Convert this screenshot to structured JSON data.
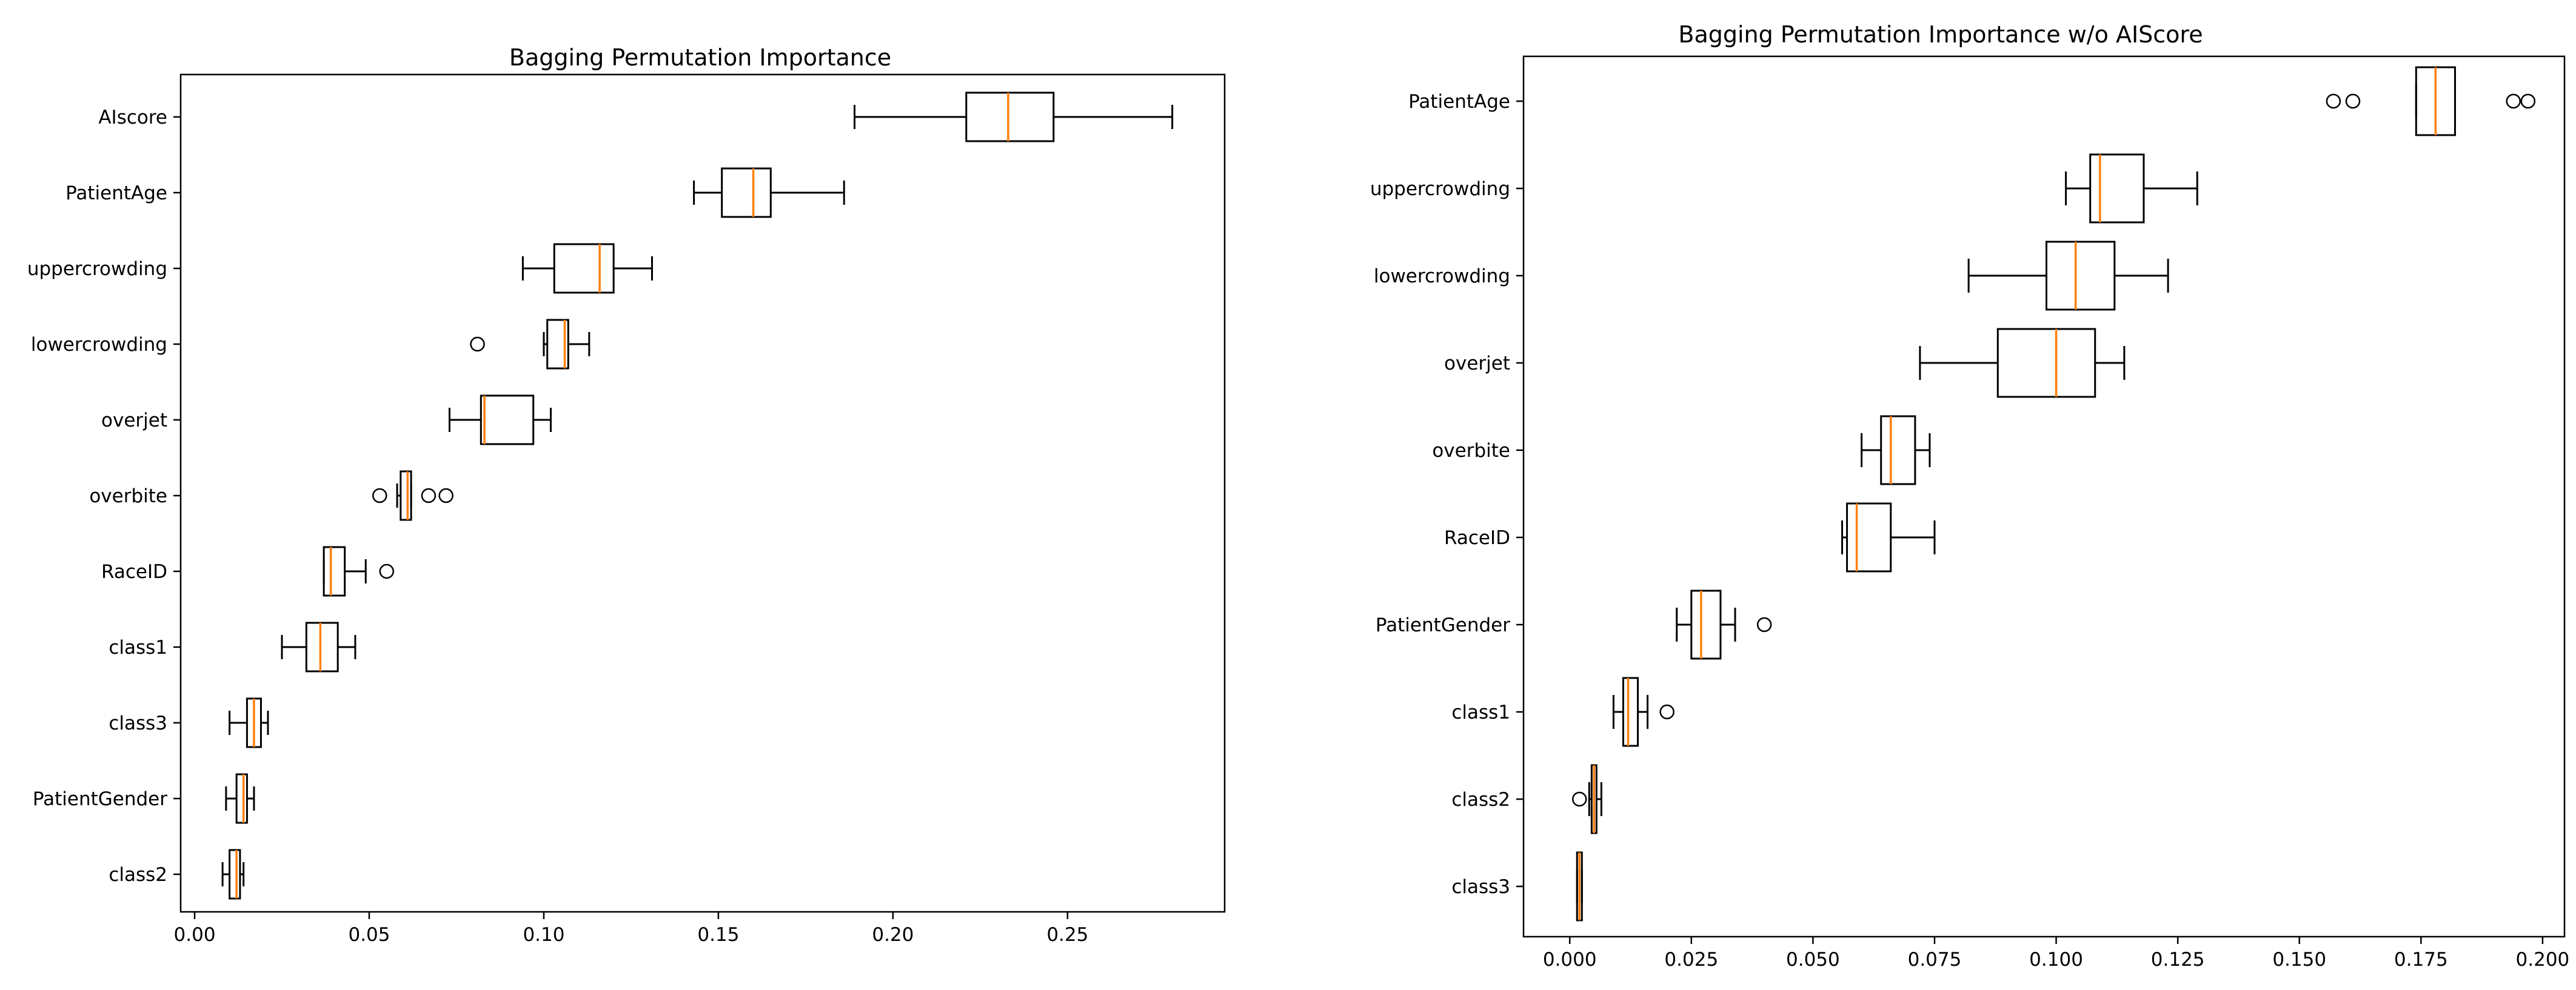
{
  "chart_data": [
    {
      "type": "box",
      "title": "Bagging Permutation Importance",
      "xlabel": "",
      "ylabel": "",
      "xlim": [
        -0.004,
        0.295
      ],
      "xticks": [
        0.0,
        0.05,
        0.1,
        0.15,
        0.2,
        0.25
      ],
      "xtick_labels": [
        "0.00",
        "0.05",
        "0.10",
        "0.15",
        "0.20",
        "0.25"
      ],
      "median_color": "#ff7f0e",
      "series": [
        {
          "name": "AIscore",
          "whislo": 0.189,
          "q1": 0.221,
          "med": 0.233,
          "q3": 0.246,
          "whishi": 0.28,
          "fliers": []
        },
        {
          "name": "PatientAge",
          "whislo": 0.143,
          "q1": 0.151,
          "med": 0.16,
          "q3": 0.165,
          "whishi": 0.186,
          "fliers": []
        },
        {
          "name": "uppercrowding",
          "whislo": 0.094,
          "q1": 0.103,
          "med": 0.116,
          "q3": 0.12,
          "whishi": 0.131,
          "fliers": []
        },
        {
          "name": "lowercrowding",
          "whislo": 0.1,
          "q1": 0.101,
          "med": 0.106,
          "q3": 0.107,
          "whishi": 0.113,
          "fliers": [
            0.081
          ]
        },
        {
          "name": "overjet",
          "whislo": 0.073,
          "q1": 0.082,
          "med": 0.083,
          "q3": 0.097,
          "whishi": 0.102,
          "fliers": []
        },
        {
          "name": "overbite",
          "whislo": 0.058,
          "q1": 0.059,
          "med": 0.061,
          "q3": 0.062,
          "whishi": 0.062,
          "fliers": [
            0.053,
            0.067,
            0.072
          ]
        },
        {
          "name": "RaceID",
          "whislo": 0.037,
          "q1": 0.037,
          "med": 0.039,
          "q3": 0.043,
          "whishi": 0.049,
          "fliers": [
            0.055
          ]
        },
        {
          "name": "class1",
          "whislo": 0.025,
          "q1": 0.032,
          "med": 0.036,
          "q3": 0.041,
          "whishi": 0.046,
          "fliers": []
        },
        {
          "name": "class3",
          "whislo": 0.01,
          "q1": 0.015,
          "med": 0.017,
          "q3": 0.019,
          "whishi": 0.021,
          "fliers": []
        },
        {
          "name": "PatientGender",
          "whislo": 0.009,
          "q1": 0.012,
          "med": 0.014,
          "q3": 0.015,
          "whishi": 0.017,
          "fliers": []
        },
        {
          "name": "class2",
          "whislo": 0.008,
          "q1": 0.01,
          "med": 0.012,
          "q3": 0.013,
          "whishi": 0.014,
          "fliers": []
        }
      ]
    },
    {
      "type": "box",
      "title": "Bagging Permutation Importance w/o AIScore",
      "xlabel": "",
      "ylabel": "",
      "xlim": [
        -0.0095,
        0.2045
      ],
      "xticks": [
        0.0,
        0.025,
        0.05,
        0.075,
        0.1,
        0.125,
        0.15,
        0.175,
        0.2
      ],
      "xtick_labels": [
        "0.000",
        "0.025",
        "0.050",
        "0.075",
        "0.100",
        "0.125",
        "0.150",
        "0.175",
        "0.200"
      ],
      "median_color": "#ff7f0e",
      "series": [
        {
          "name": "PatientAge",
          "whislo": 0.174,
          "q1": 0.174,
          "med": 0.178,
          "q3": 0.182,
          "whishi": 0.182,
          "fliers": [
            0.157,
            0.161,
            0.194,
            0.197
          ]
        },
        {
          "name": "uppercrowding",
          "whislo": 0.102,
          "q1": 0.107,
          "med": 0.109,
          "q3": 0.118,
          "whishi": 0.129,
          "fliers": []
        },
        {
          "name": "lowercrowding",
          "whislo": 0.082,
          "q1": 0.098,
          "med": 0.104,
          "q3": 0.112,
          "whishi": 0.123,
          "fliers": []
        },
        {
          "name": "overjet",
          "whislo": 0.072,
          "q1": 0.088,
          "med": 0.1,
          "q3": 0.108,
          "whishi": 0.114,
          "fliers": []
        },
        {
          "name": "overbite",
          "whislo": 0.06,
          "q1": 0.064,
          "med": 0.066,
          "q3": 0.071,
          "whishi": 0.074,
          "fliers": []
        },
        {
          "name": "RaceID",
          "whislo": 0.056,
          "q1": 0.057,
          "med": 0.059,
          "q3": 0.066,
          "whishi": 0.075,
          "fliers": []
        },
        {
          "name": "PatientGender",
          "whislo": 0.022,
          "q1": 0.025,
          "med": 0.027,
          "q3": 0.031,
          "whishi": 0.034,
          "fliers": [
            0.04
          ]
        },
        {
          "name": "class1",
          "whislo": 0.009,
          "q1": 0.011,
          "med": 0.012,
          "q3": 0.014,
          "whishi": 0.016,
          "fliers": [
            0.02
          ]
        },
        {
          "name": "class2",
          "whislo": 0.004,
          "q1": 0.0045,
          "med": 0.005,
          "q3": 0.0055,
          "whishi": 0.0065,
          "fliers": [
            0.002
          ]
        },
        {
          "name": "class3",
          "whislo": 0.0015,
          "q1": 0.0015,
          "med": 0.002,
          "q3": 0.0025,
          "whishi": 0.0025,
          "fliers": []
        }
      ]
    }
  ]
}
